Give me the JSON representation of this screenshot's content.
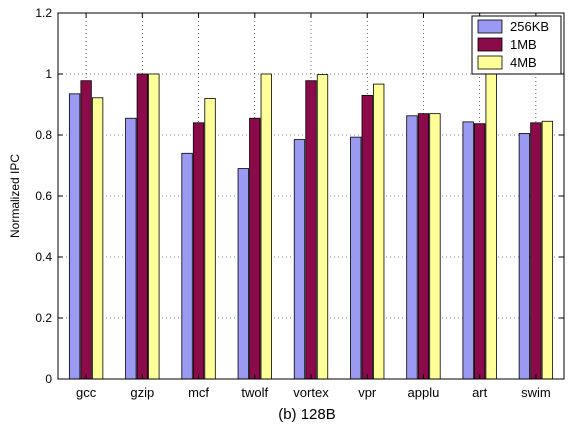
{
  "chart_data": {
    "type": "bar",
    "title": "(b) 128B",
    "xlabel": "",
    "ylabel": "Normalized IPC",
    "ylim": [
      0,
      1.2
    ],
    "yticks": [
      0,
      0.2,
      0.4,
      0.6,
      0.8,
      1,
      1.2
    ],
    "ytick_labels": [
      "0",
      "0.2",
      "0.4",
      "0.6",
      "0.8",
      "1",
      "1.2"
    ],
    "grid": true,
    "legend_position": "top-right",
    "categories": [
      "gcc",
      "gzip",
      "mcf",
      "twolf",
      "vortex",
      "vpr",
      "applu",
      "art",
      "swim"
    ],
    "series": [
      {
        "name": "256KB",
        "color": "#9a9af2",
        "values": [
          0.935,
          0.855,
          0.74,
          0.69,
          0.785,
          0.793,
          0.863,
          0.843,
          0.805
        ]
      },
      {
        "name": "1MB",
        "color": "#8a0a4a",
        "values": [
          0.978,
          1.0,
          0.84,
          0.855,
          0.978,
          0.93,
          0.87,
          0.837,
          0.84
        ]
      },
      {
        "name": "4MB",
        "color": "#ffff99",
        "values": [
          0.922,
          1.0,
          0.92,
          1.0,
          0.998,
          0.967,
          0.87,
          1.0,
          0.845
        ]
      }
    ]
  }
}
